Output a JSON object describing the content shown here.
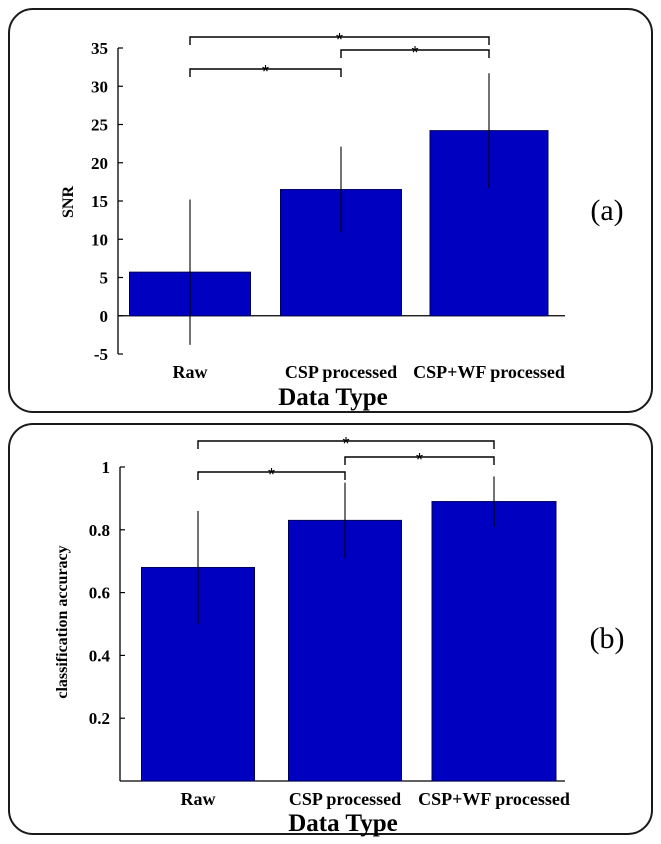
{
  "chart_data": [
    {
      "type": "bar",
      "panel_tag": "(a)",
      "categories": [
        "Raw",
        "CSP processed",
        "CSP+WF processed"
      ],
      "values": [
        5.7,
        16.5,
        24.2
      ],
      "error": [
        9.5,
        5.6,
        7.5
      ],
      "xlabel": "Data Type",
      "ylabel": "SNR",
      "ylim": [
        -5,
        35
      ],
      "yticks": [
        -5,
        0,
        5,
        10,
        15,
        20,
        25,
        30,
        35
      ],
      "ytick_labels": [
        "-5",
        "0",
        "5",
        "10",
        "15",
        "20",
        "25",
        "30",
        "35"
      ],
      "bar_color": "#0000c0",
      "significance": [
        {
          "from": 0,
          "to": 2,
          "label": "*"
        },
        {
          "from": 1,
          "to": 2,
          "label": "*"
        },
        {
          "from": 0,
          "to": 1,
          "label": "*"
        }
      ]
    },
    {
      "type": "bar",
      "panel_tag": "(b)",
      "categories": [
        "Raw",
        "CSP processed",
        "CSP+WF processed"
      ],
      "values": [
        0.68,
        0.83,
        0.89
      ],
      "error": [
        0.18,
        0.12,
        0.08
      ],
      "xlabel": "Data Type",
      "ylabel": "classification accuracy",
      "ylim": [
        0,
        1
      ],
      "yticks": [
        0.2,
        0.4,
        0.6,
        0.8,
        1
      ],
      "ytick_labels": [
        "0.2",
        "0.4",
        "0.6",
        "0.8",
        "1"
      ],
      "bar_color": "#0000c0",
      "significance": [
        {
          "from": 0,
          "to": 2,
          "label": "*"
        },
        {
          "from": 1,
          "to": 2,
          "label": "*"
        },
        {
          "from": 0,
          "to": 1,
          "label": "*"
        }
      ]
    }
  ]
}
